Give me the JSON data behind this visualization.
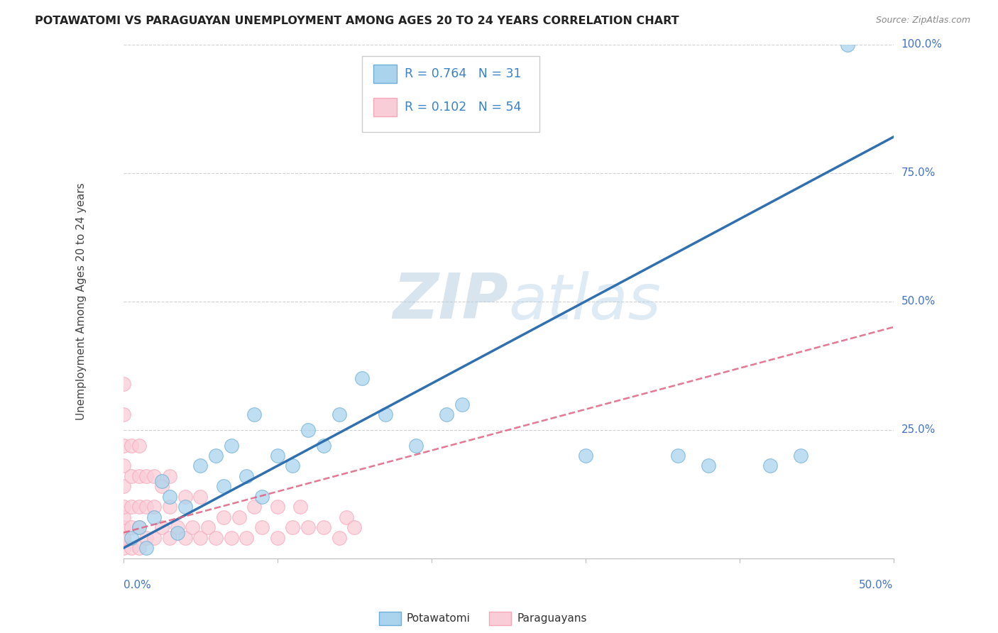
{
  "title": "POTAWATOMI VS PARAGUAYAN UNEMPLOYMENT AMONG AGES 20 TO 24 YEARS CORRELATION CHART",
  "source": "Source: ZipAtlas.com",
  "ylabel": "Unemployment Among Ages 20 to 24 years",
  "legend_label1": "Potawatomi",
  "legend_label2": "Paraguayans",
  "R1": 0.764,
  "N1": 31,
  "R2": 0.102,
  "N2": 54,
  "color1": "#6baed6",
  "color2": "#f4a7b9",
  "color1_fill": "#aad4ed",
  "color2_fill": "#f9cdd8",
  "color1_line": "#3070b0",
  "color2_line": "#e06080",
  "xlim": [
    0.0,
    0.5
  ],
  "ylim": [
    0.0,
    1.0
  ],
  "yticks": [
    0.0,
    0.25,
    0.5,
    0.75,
    1.0
  ],
  "ytick_labels": [
    "",
    "25.0%",
    "50.0%",
    "75.0%",
    "100.0%"
  ],
  "watermark": "ZIPatlas",
  "blue_line": [
    0.0,
    0.02,
    0.5,
    0.82
  ],
  "pink_line": [
    0.0,
    0.05,
    0.5,
    0.45
  ],
  "potawatomi_x": [
    0.005,
    0.01,
    0.015,
    0.02,
    0.025,
    0.03,
    0.035,
    0.04,
    0.05,
    0.06,
    0.065,
    0.07,
    0.08,
    0.085,
    0.09,
    0.1,
    0.11,
    0.12,
    0.13,
    0.14,
    0.155,
    0.17,
    0.19,
    0.21,
    0.22,
    0.3,
    0.36,
    0.38,
    0.42,
    0.44,
    0.47
  ],
  "potawatomi_y": [
    0.04,
    0.06,
    0.02,
    0.08,
    0.15,
    0.12,
    0.05,
    0.1,
    0.18,
    0.2,
    0.14,
    0.22,
    0.16,
    0.28,
    0.12,
    0.2,
    0.18,
    0.25,
    0.22,
    0.28,
    0.35,
    0.28,
    0.22,
    0.28,
    0.3,
    0.2,
    0.2,
    0.18,
    0.18,
    0.2,
    1.0
  ],
  "paraguayan_x": [
    0.0,
    0.0,
    0.0,
    0.0,
    0.0,
    0.0,
    0.0,
    0.0,
    0.0,
    0.0,
    0.005,
    0.005,
    0.005,
    0.005,
    0.005,
    0.01,
    0.01,
    0.01,
    0.01,
    0.01,
    0.015,
    0.015,
    0.015,
    0.02,
    0.02,
    0.02,
    0.025,
    0.025,
    0.03,
    0.03,
    0.03,
    0.035,
    0.04,
    0.04,
    0.045,
    0.05,
    0.05,
    0.055,
    0.06,
    0.065,
    0.07,
    0.075,
    0.08,
    0.085,
    0.09,
    0.1,
    0.1,
    0.11,
    0.115,
    0.12,
    0.13,
    0.14,
    0.145,
    0.15
  ],
  "paraguayan_y": [
    0.02,
    0.04,
    0.06,
    0.08,
    0.1,
    0.14,
    0.18,
    0.22,
    0.28,
    0.34,
    0.02,
    0.06,
    0.1,
    0.16,
    0.22,
    0.02,
    0.06,
    0.1,
    0.16,
    0.22,
    0.04,
    0.1,
    0.16,
    0.04,
    0.1,
    0.16,
    0.06,
    0.14,
    0.04,
    0.1,
    0.16,
    0.06,
    0.04,
    0.12,
    0.06,
    0.04,
    0.12,
    0.06,
    0.04,
    0.08,
    0.04,
    0.08,
    0.04,
    0.1,
    0.06,
    0.04,
    0.1,
    0.06,
    0.1,
    0.06,
    0.06,
    0.04,
    0.08,
    0.06
  ]
}
